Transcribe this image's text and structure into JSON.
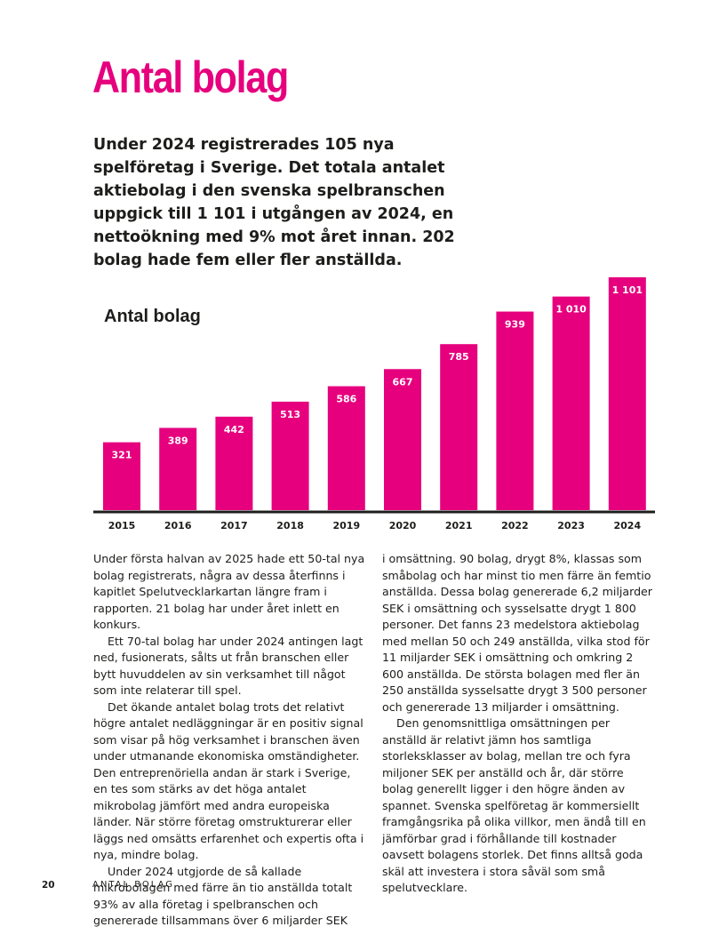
{
  "page": {
    "title": "Antal bolag",
    "intro": "Under 2024 registrerades 105 nya spelföretag i Sverige. Det totala antalet aktiebolag i den svenska spelbranschen uppgick till 1 101 i utgången av 2024, en nettoökning med 9% mot året innan. 202 bolag hade fem eller fler anställda.",
    "column_1": [
      "Under första halvan av 2025 hade ett 50-tal nya bolag registrerats, några av dessa återfinns i kapitlet Spelutvecklarkartan längre fram i rapporten. 21 bolag har under året inlett en konkurs.",
      "Ett 70-tal bolag har under 2024 antingen lagt ned, fusionerats, sålts ut från branschen eller bytt huvuddelen av sin verksamhet till något som inte relaterar till spel.",
      "Det ökande antalet bolag trots det relativt högre antalet nedläggningar är en positiv signal som visar på hög verksamhet i branschen även under utmanande ekonomiska omständigheter. Den entreprenöriella andan är stark i Sverige, en tes som stärks av det höga antalet mikrobolag jämfört med andra europeiska länder. När större företag omstrukturerar eller läggs ned omsätts erfarenhet och expertis ofta i nya, mindre bolag.",
      "Under 2024 utgjorde de så kallade mikrobolagen med färre än tio anställda totalt 93% av alla företag i spelbranschen och genererade tillsammans över 6 miljarder SEK"
    ],
    "column_2": [
      "i omsättning. 90 bolag, drygt 8%, klassas som småbolag och har minst tio men färre än femtio anställda. Dessa bolag genererade 6,2 miljarder SEK i omsättning och sysselsatte drygt 1 800 personer. Det fanns 23 medelstora aktiebolag med mellan 50 och 249 anställda, vilka stod för 11 miljarder SEK i omsättning och omkring 2 600 anställda. De största bolagen med fler än 250 anställda sysselsatte drygt 3 500 personer och genererade 13 miljarder i omsättning.",
      "Den genomsnittliga omsättningen per anställd är relativt jämn hos samtliga storleksklasser av bolag, mellan tre och fyra miljoner SEK per anställd och år, där större bolag generellt ligger i den högre änden av spannet. Svenska spelföretag är kommersiellt framgångsrika på olika villkor, men ändå till en jämförbar grad i förhållande till kostnader oavsett bolagens storlek. Det finns alltså goda skäl att investera i stora såväl som små spelutvecklare."
    ],
    "page_number": "20",
    "running_header": "ANTAL BOLAG"
  },
  "chart_data": {
    "type": "bar",
    "title": "Antal bolag",
    "color": "#e6007e",
    "categories": [
      "2015",
      "2016",
      "2017",
      "2018",
      "2019",
      "2020",
      "2021",
      "2022",
      "2023",
      "2024"
    ],
    "values": [
      321,
      389,
      442,
      513,
      586,
      667,
      785,
      939,
      1010,
      1101
    ],
    "value_labels": [
      "321",
      "389",
      "442",
      "513",
      "586",
      "667",
      "785",
      "939",
      "1 010",
      "1 101"
    ]
  }
}
